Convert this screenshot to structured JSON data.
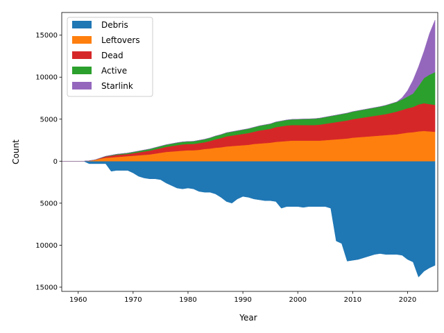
{
  "chart_data": {
    "type": "area",
    "xlabel": "Year",
    "ylabel": "Count",
    "xlim": [
      1957,
      2025.5
    ],
    "ylim": [
      -15500,
      17700
    ],
    "x_ticks": [
      1960,
      1970,
      1980,
      1990,
      2000,
      2010,
      2020
    ],
    "x_tick_labels": [
      "1960",
      "1970",
      "1980",
      "1990",
      "2000",
      "2010",
      "2020"
    ],
    "y_ticks": [
      -15000,
      -10000,
      -5000,
      0,
      5000,
      10000,
      15000
    ],
    "y_tick_labels": [
      "15000",
      "10000",
      "5000",
      "0",
      "5000",
      "10000",
      "15000"
    ],
    "legend_position": "upper-left",
    "x": [
      1957,
      1961,
      1962,
      1963,
      1964,
      1965,
      1966,
      1967,
      1968,
      1969,
      1970,
      1971,
      1972,
      1973,
      1974,
      1975,
      1976,
      1977,
      1978,
      1979,
      1980,
      1981,
      1982,
      1983,
      1984,
      1985,
      1986,
      1987,
      1988,
      1989,
      1990,
      1991,
      1992,
      1993,
      1994,
      1995,
      1996,
      1997,
      1998,
      1999,
      2000,
      2001,
      2002,
      2003,
      2004,
      2005,
      2006,
      2007,
      2008,
      2009,
      2010,
      2011,
      2012,
      2013,
      2014,
      2015,
      2016,
      2017,
      2018,
      2019,
      2020,
      2021,
      2022,
      2023,
      2024,
      2025
    ],
    "series": [
      {
        "name": "Debris",
        "color": "#1f77b4",
        "direction": "down",
        "values": [
          0,
          0,
          300,
          300,
          300,
          300,
          1200,
          1100,
          1100,
          1100,
          1400,
          1800,
          2000,
          2100,
          2100,
          2200,
          2600,
          2900,
          3200,
          3300,
          3200,
          3300,
          3600,
          3700,
          3700,
          3900,
          4300,
          4800,
          5000,
          4500,
          4200,
          4300,
          4500,
          4600,
          4700,
          4700,
          4800,
          5600,
          5400,
          5400,
          5400,
          5500,
          5400,
          5400,
          5400,
          5400,
          5600,
          9500,
          9800,
          11900,
          11800,
          11700,
          11500,
          11300,
          11100,
          11000,
          11100,
          11100,
          11100,
          11200,
          11700,
          12000,
          13800,
          13100,
          12700,
          12400
        ]
      },
      {
        "name": "Leftovers",
        "color": "#ff7f0e",
        "values": [
          0,
          0,
          50,
          150,
          300,
          400,
          450,
          500,
          550,
          600,
          650,
          700,
          750,
          800,
          900,
          1000,
          1100,
          1150,
          1200,
          1250,
          1300,
          1300,
          1350,
          1450,
          1500,
          1600,
          1650,
          1750,
          1800,
          1850,
          1900,
          1950,
          2050,
          2100,
          2150,
          2200,
          2300,
          2350,
          2400,
          2450,
          2450,
          2450,
          2450,
          2450,
          2450,
          2500,
          2550,
          2600,
          2650,
          2700,
          2800,
          2850,
          2900,
          2950,
          3000,
          3050,
          3100,
          3150,
          3200,
          3300,
          3400,
          3450,
          3550,
          3600,
          3550,
          3500
        ]
      },
      {
        "name": "Dead",
        "color": "#d62728",
        "values": [
          0,
          0,
          0,
          0,
          50,
          150,
          200,
          250,
          250,
          250,
          300,
          350,
          400,
          450,
          500,
          550,
          600,
          650,
          700,
          750,
          750,
          750,
          800,
          800,
          900,
          1000,
          1100,
          1200,
          1250,
          1300,
          1350,
          1400,
          1450,
          1550,
          1600,
          1650,
          1750,
          1800,
          1850,
          1850,
          1850,
          1850,
          1850,
          1850,
          1900,
          1950,
          2000,
          2050,
          2100,
          2150,
          2200,
          2250,
          2300,
          2350,
          2400,
          2450,
          2500,
          2600,
          2700,
          2800,
          2900,
          3000,
          3200,
          3300,
          3250,
          3200
        ]
      },
      {
        "name": "Active",
        "color": "#2ca02c",
        "values": [
          0,
          0,
          0,
          0,
          20,
          40,
          60,
          80,
          100,
          120,
          140,
          160,
          180,
          200,
          220,
          240,
          260,
          280,
          300,
          300,
          300,
          320,
          340,
          360,
          380,
          400,
          420,
          440,
          460,
          480,
          500,
          520,
          540,
          560,
          580,
          600,
          620,
          640,
          660,
          680,
          700,
          720,
          740,
          760,
          780,
          800,
          820,
          840,
          860,
          880,
          900,
          920,
          940,
          960,
          980,
          1000,
          1050,
          1100,
          1150,
          1250,
          1400,
          1600,
          2200,
          3000,
          3500,
          3900
        ]
      },
      {
        "name": "Starlink",
        "color": "#9467bd",
        "values": [
          0,
          0,
          0,
          0,
          0,
          0,
          0,
          0,
          0,
          0,
          0,
          0,
          0,
          0,
          0,
          0,
          0,
          0,
          0,
          0,
          0,
          0,
          0,
          0,
          0,
          0,
          0,
          0,
          0,
          0,
          0,
          0,
          0,
          0,
          0,
          0,
          0,
          0,
          0,
          0,
          0,
          0,
          0,
          0,
          0,
          0,
          0,
          0,
          0,
          0,
          0,
          0,
          0,
          0,
          0,
          0,
          0,
          0,
          0,
          200,
          700,
          1600,
          2300,
          3200,
          4900,
          6200
        ]
      }
    ]
  }
}
